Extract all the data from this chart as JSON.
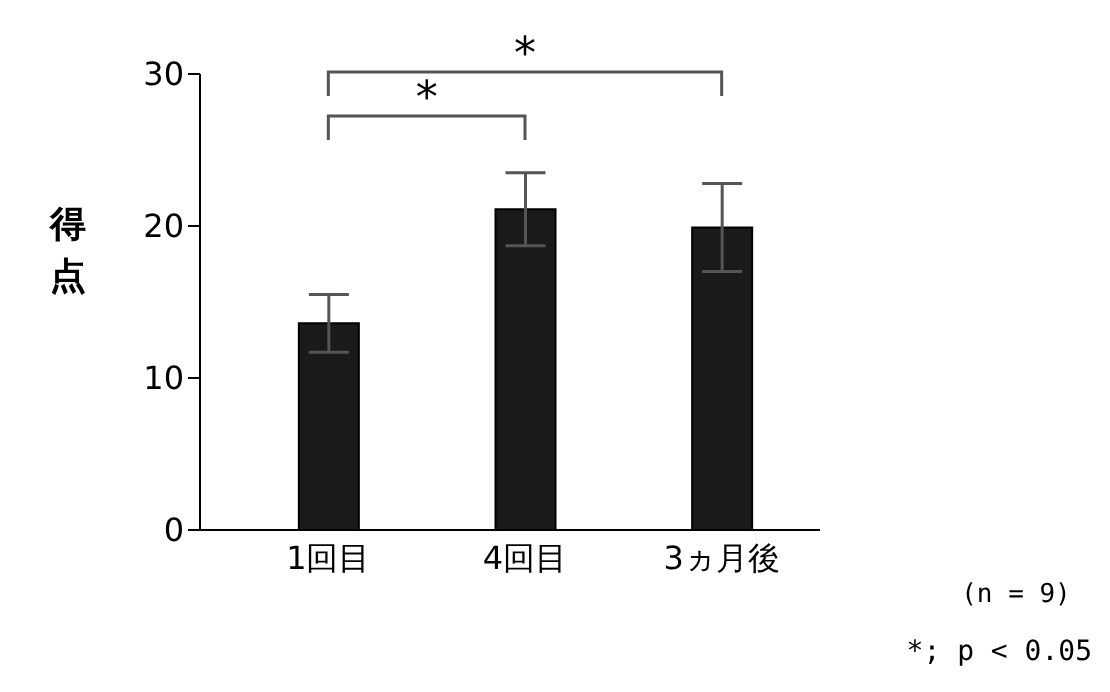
{
  "chart_data": {
    "type": "bar",
    "ylabel": "得点",
    "categories": [
      "1回目",
      "4回目",
      "3ヵ月後"
    ],
    "series": [
      {
        "color": "#1a1a1a",
        "values": [
          13.6,
          21.1,
          19.9
        ],
        "errors": [
          1.9,
          2.4,
          2.9
        ]
      }
    ],
    "ylim": [
      0,
      30
    ],
    "yticks": [
      0,
      10,
      20,
      30
    ],
    "annotations": [
      "*",
      "*",
      "(n = 9)",
      "*; p < 0.05"
    ]
  }
}
